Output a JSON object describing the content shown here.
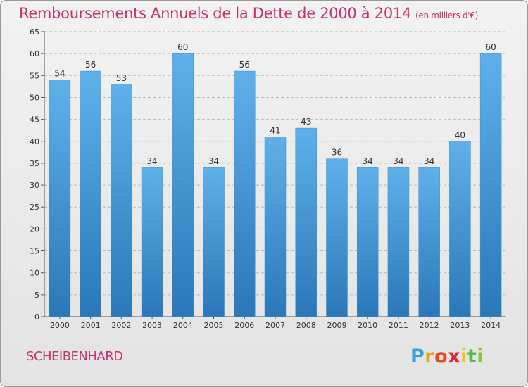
{
  "title": "Remboursements Annuels de la Dette de 2000 à 2014",
  "subtitle": "(en milliers d'€)",
  "commune": "SCHEIBENHARD",
  "logo": {
    "text": "Proxiti",
    "letters": [
      "P",
      "r",
      "o",
      "x",
      "i",
      "t",
      "i"
    ],
    "colors": [
      "#3aa0d8",
      "#e8a020",
      "#e84a1a",
      "#e0243c",
      "#f2c218",
      "#58b848",
      "#8bc43a"
    ]
  },
  "colors": {
    "title": "#c8326e",
    "bar_top": "#5fb0ea",
    "bar_bottom": "#2a78b8",
    "grid": "#b9b9b9"
  },
  "chart_data": {
    "type": "bar",
    "title": "Remboursements Annuels de la Dette de 2000 à 2014",
    "subtitle": "(en milliers d'€)",
    "categories": [
      "2000",
      "2001",
      "2002",
      "2003",
      "2004",
      "2005",
      "2006",
      "2007",
      "2008",
      "2009",
      "2010",
      "2011",
      "2012",
      "2013",
      "2014"
    ],
    "values": [
      54,
      56,
      53,
      34,
      60,
      34,
      56,
      41,
      43,
      36,
      34,
      34,
      34,
      40,
      60
    ],
    "ylim": [
      0,
      65
    ],
    "yticks": [
      0,
      5,
      10,
      15,
      20,
      25,
      30,
      35,
      40,
      45,
      50,
      55,
      60,
      65
    ],
    "grid": true,
    "xlabel": "",
    "ylabel": ""
  }
}
